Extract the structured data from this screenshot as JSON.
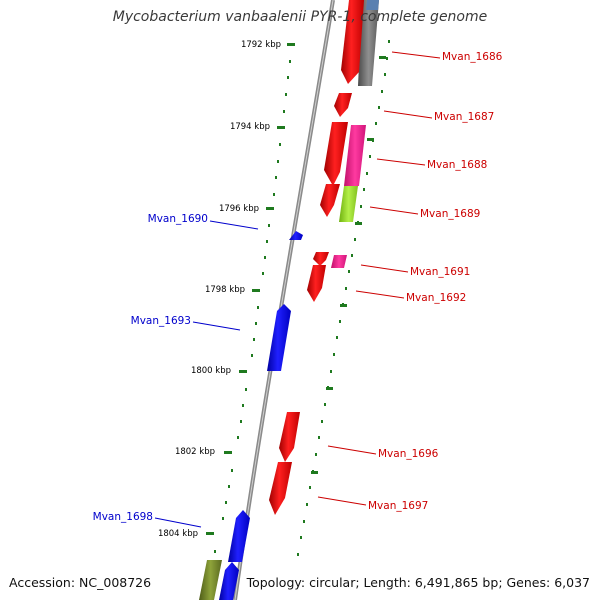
{
  "header": {
    "title": "Mycobacterium vanbaalenii PYR-1, complete genome"
  },
  "footer": {
    "accession_label": "Accession:",
    "accession_value": "NC_008726",
    "topology_label": "Topology:",
    "topology_value": "circular",
    "length_label": "Length:",
    "length_value": "6,491,865 bp",
    "genes_label": "Genes:",
    "genes_value": "6,037"
  },
  "ticks": [
    {
      "label": "1792 kbp"
    },
    {
      "label": "1794 kbp"
    },
    {
      "label": "1796 kbp"
    },
    {
      "label": "1798 kbp"
    },
    {
      "label": "1800 kbp"
    },
    {
      "label": "1802 kbp"
    },
    {
      "label": "1804 kbp"
    }
  ],
  "genes": [
    {
      "label": "Mvan_1686",
      "strand": "plus",
      "color": "#cc0000"
    },
    {
      "label": "Mvan_1687",
      "strand": "plus",
      "color": "#cc0000"
    },
    {
      "label": "Mvan_1688",
      "strand": "plus",
      "color": "#cc0000"
    },
    {
      "label": "Mvan_1689",
      "strand": "plus",
      "color": "#cc0000"
    },
    {
      "label": "Mvan_1690",
      "strand": "minus",
      "color": "#0000cc"
    },
    {
      "label": "Mvan_1691",
      "strand": "plus",
      "color": "#cc0000"
    },
    {
      "label": "Mvan_1692",
      "strand": "plus",
      "color": "#cc0000"
    },
    {
      "label": "Mvan_1693",
      "strand": "minus",
      "color": "#0000cc"
    },
    {
      "label": "Mvan_1696",
      "strand": "plus",
      "color": "#cc0000"
    },
    {
      "label": "Mvan_1697",
      "strand": "plus",
      "color": "#cc0000"
    },
    {
      "label": "Mvan_1698",
      "strand": "minus",
      "color": "#0000cc"
    }
  ],
  "colors": {
    "plus_strand": "#ff0000",
    "minus_strand": "#0000ff",
    "backbone": "#888888",
    "cog_magenta": "#ff1493",
    "cog_lime": "#99e62e",
    "cog_gray": "#707070",
    "cog_olive": "#6b7f2a",
    "tick": "#1f7a1f"
  }
}
